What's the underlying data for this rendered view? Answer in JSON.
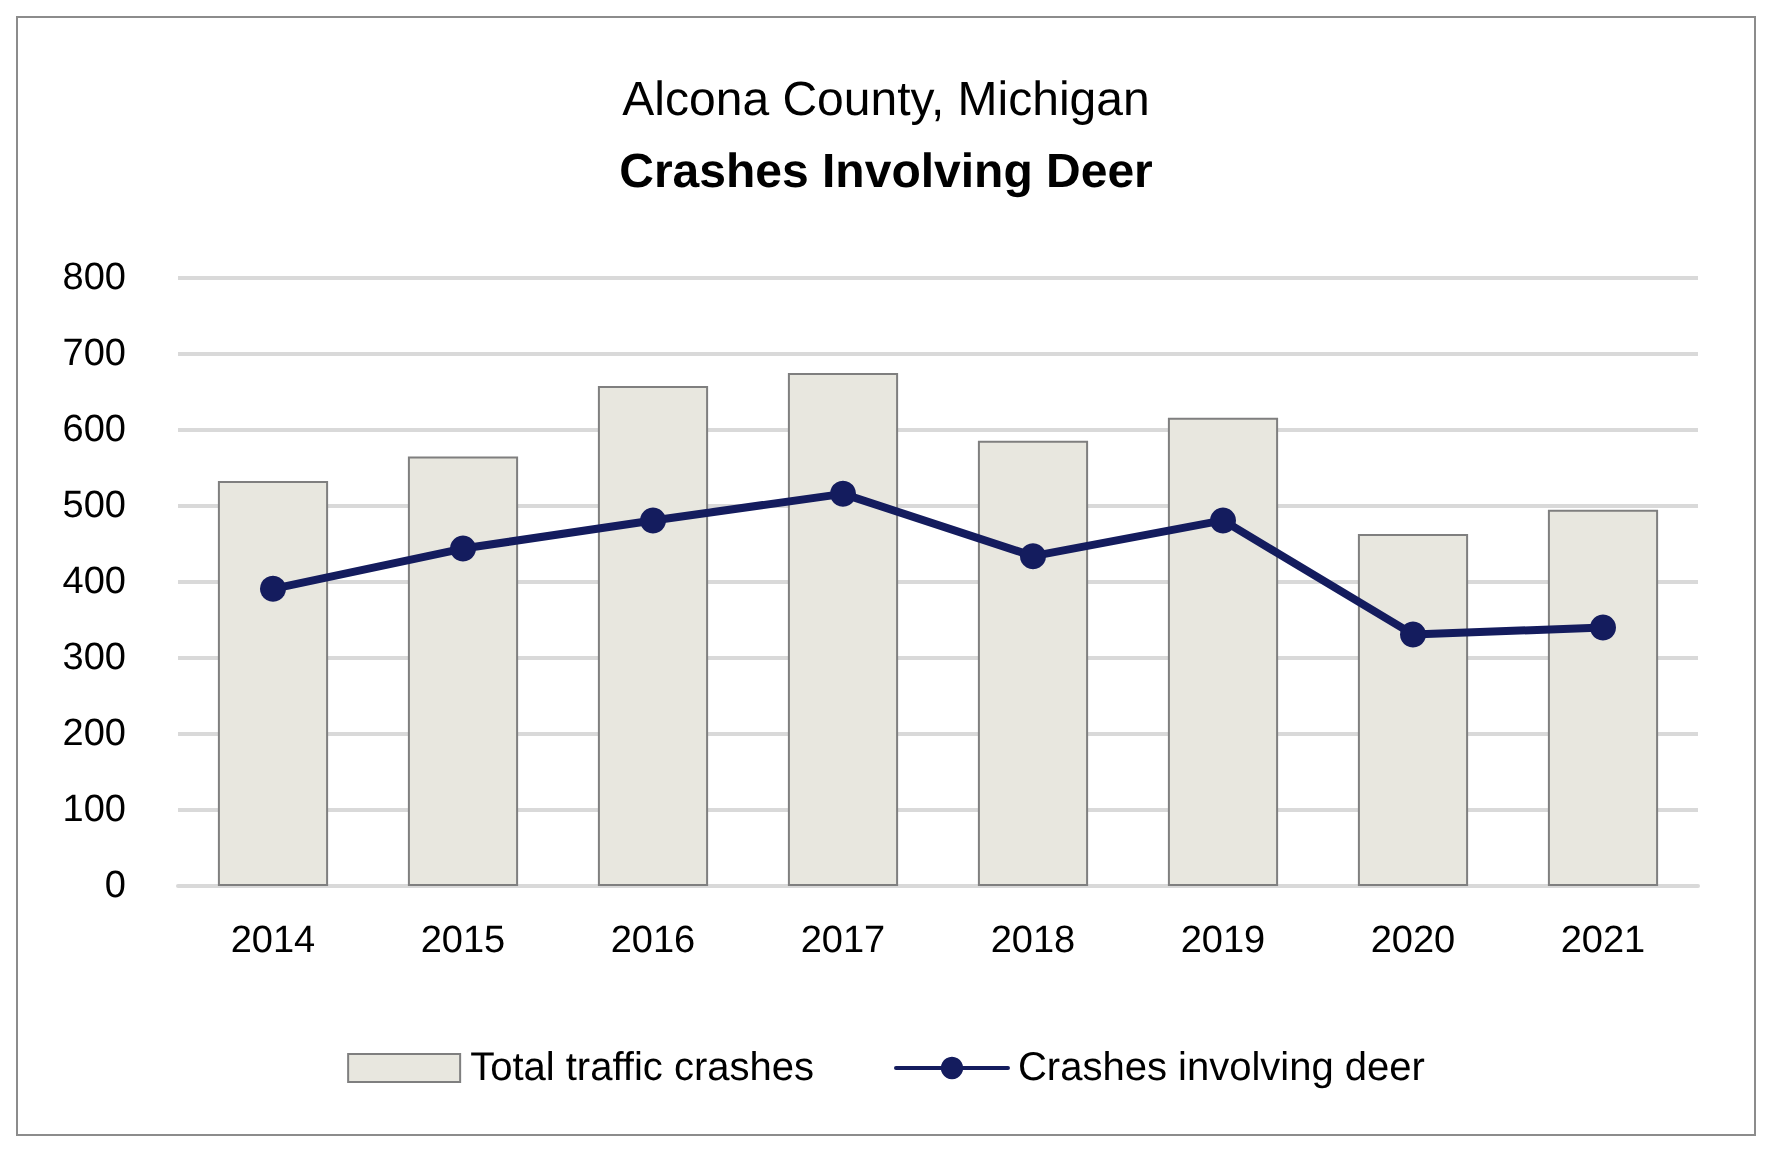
{
  "chart_data": {
    "type": "bar",
    "title": "Alcona County, Michigan",
    "subtitle": "Crashes Involving Deer",
    "categories": [
      "2014",
      "2015",
      "2016",
      "2017",
      "2018",
      "2019",
      "2020",
      "2021"
    ],
    "series": [
      {
        "name": "Total traffic crashes",
        "color": "#e8e7df",
        "values": [
          533,
          565,
          658,
          675,
          586,
          616,
          463,
          495
        ]
      },
      {
        "name": "Crashes involving deer",
        "type": "line",
        "color": "#141c5e",
        "values": [
          391,
          444,
          481,
          516,
          434,
          481,
          331,
          340
        ]
      }
    ],
    "ylim": [
      0,
      800
    ],
    "yticks": [
      0,
      100,
      200,
      300,
      400,
      500,
      600,
      700,
      800
    ],
    "grid": "y",
    "legend": "bottom",
    "marker": "circle"
  }
}
